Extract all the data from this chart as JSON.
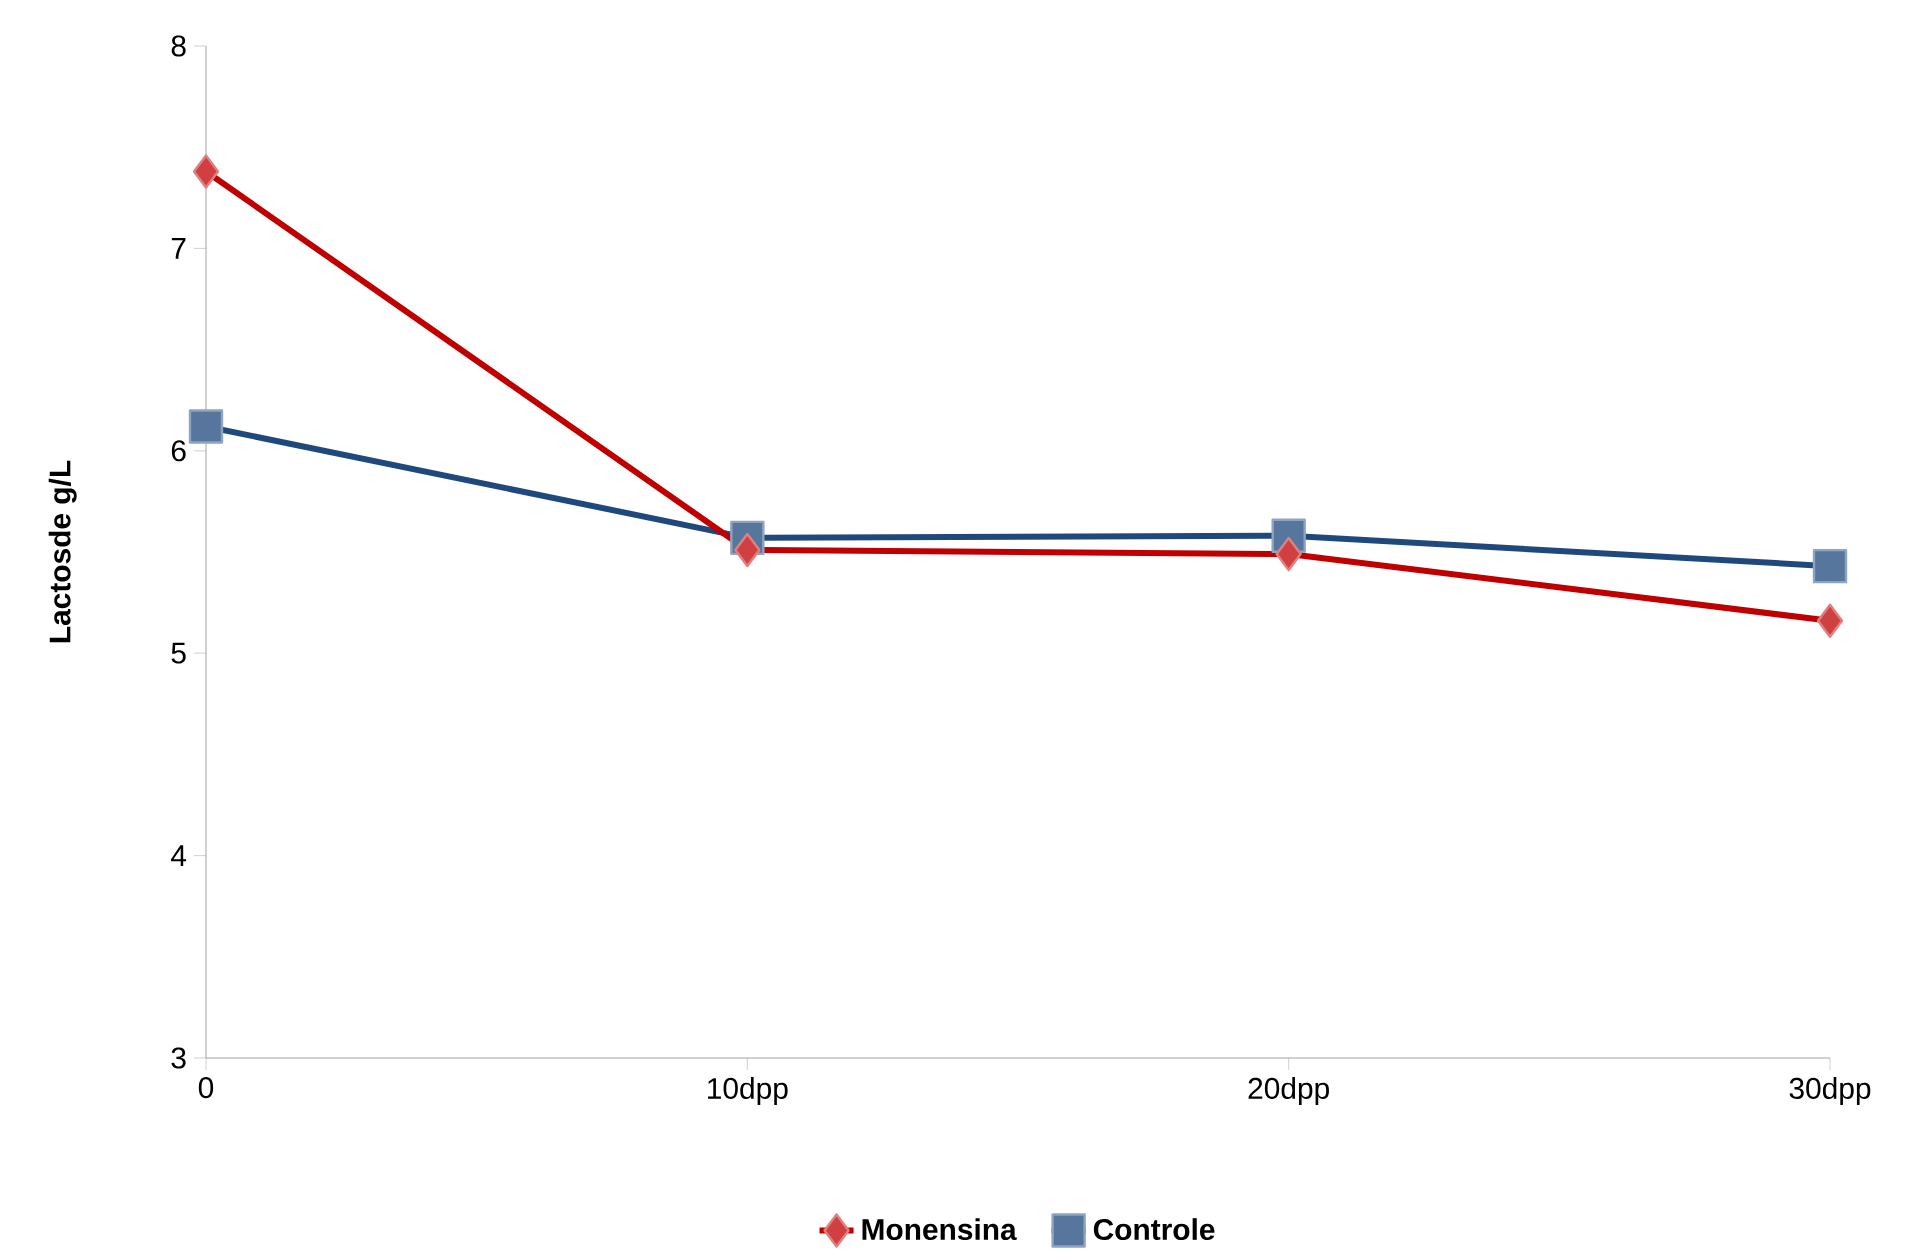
{
  "chart_data": {
    "type": "line",
    "ylabel": "Lactosde g/L",
    "categories": [
      "0",
      "10dpp",
      "20dpp",
      "30dpp"
    ],
    "series": [
      {
        "name": "Monensina",
        "color": "#c00000",
        "marker": "diamond",
        "values": [
          7.38,
          5.51,
          5.49,
          5.16
        ]
      },
      {
        "name": "Controle",
        "color": "#1f497d",
        "marker": "square",
        "values": [
          6.12,
          5.57,
          5.58,
          5.43
        ]
      }
    ],
    "ylim": [
      3,
      8
    ],
    "yticks": [
      3,
      4,
      5,
      6,
      7,
      8
    ],
    "grid": false,
    "legend": "bottom",
    "line_style": "solid"
  }
}
